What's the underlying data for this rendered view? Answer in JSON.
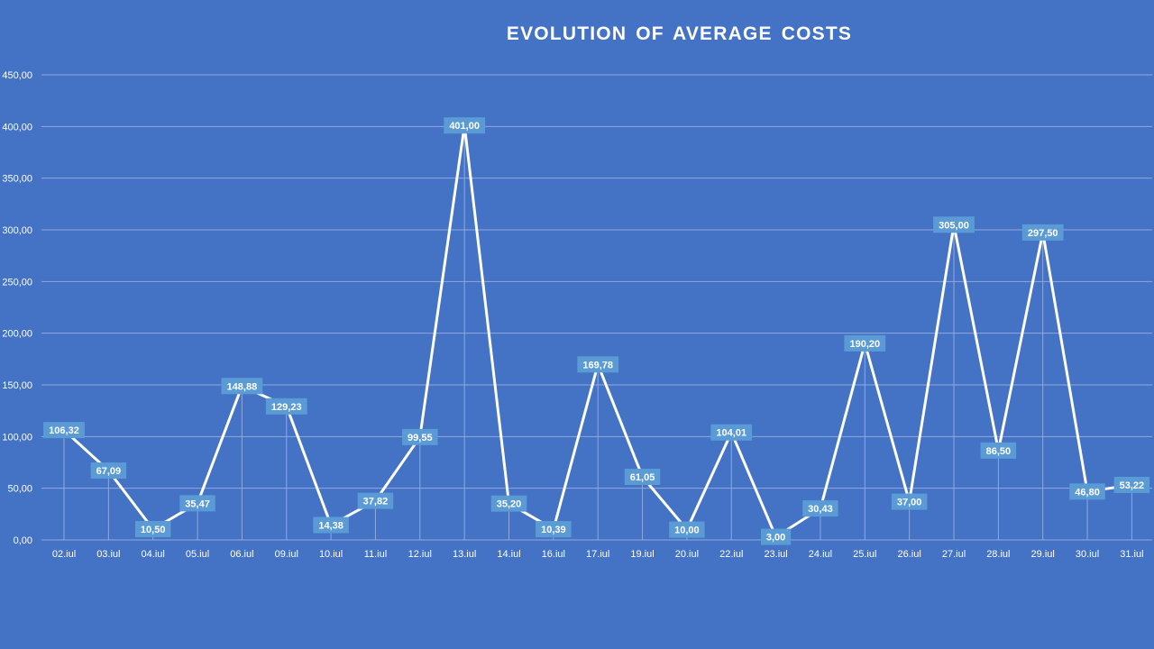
{
  "colors": {
    "background": "#4472c4",
    "line": "#ffffff",
    "gridline": "#8fa9dc",
    "label_box": "#5b9bd5",
    "text": "#ffffff"
  },
  "chart_data": {
    "type": "line",
    "title": "EVOLUTION  OF AVERAGE COSTS",
    "xlabel": "",
    "ylabel": "",
    "ylim": [
      0,
      450
    ],
    "yticks": [
      0,
      50,
      100,
      150,
      200,
      250,
      300,
      350,
      400,
      450
    ],
    "ytick_labels": [
      "0,00",
      "50,00",
      "100,00",
      "150,00",
      "200,00",
      "250,00",
      "300,00",
      "350,00",
      "400,00",
      "450,00"
    ],
    "grid": true,
    "legend": "none",
    "categories": [
      "02.iul",
      "03.iul",
      "04.iul",
      "05.iul",
      "06.iul",
      "09.iul",
      "10.iul",
      "11.iul",
      "12.iul",
      "13.iul",
      "14.iul",
      "16.iul",
      "17.iul",
      "19.iul",
      "20.iul",
      "22.iul",
      "23.iul",
      "24.iul",
      "25.iul",
      "26.iul",
      "27.iul",
      "28.iul",
      "29.iul",
      "30.iul",
      "31.iul"
    ],
    "values": [
      106.32,
      67.09,
      10.5,
      35.47,
      148.88,
      129.23,
      14.38,
      37.82,
      99.55,
      401.0,
      35.2,
      10.39,
      169.78,
      61.05,
      10.0,
      104.01,
      3.0,
      30.43,
      190.2,
      37.0,
      305.0,
      86.5,
      297.5,
      46.8,
      53.22
    ],
    "value_labels": [
      "106,32",
      "67,09",
      "10,50",
      "35,47",
      "148,88",
      "129,23",
      "14,38",
      "37,82",
      "99,55",
      "401,00",
      "35,20",
      "10,39",
      "169,78",
      "61,05",
      "10,00",
      "104,01",
      "3,00",
      "30,43",
      "190,20",
      "37,00",
      "305,00",
      "86,50",
      "297,50",
      "46,80",
      "53,22"
    ]
  }
}
